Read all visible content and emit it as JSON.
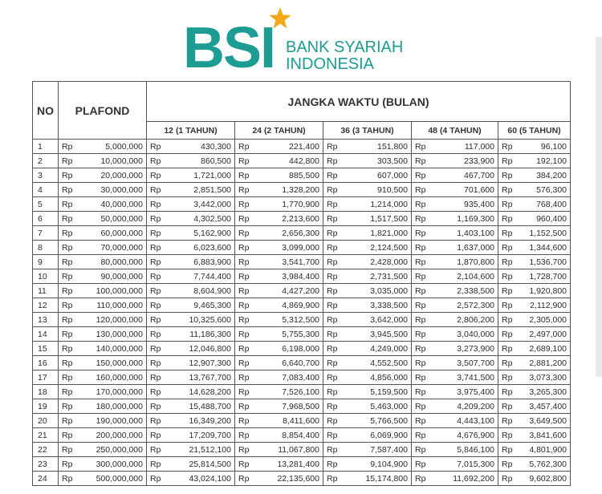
{
  "logo": {
    "mark": "BSI",
    "name_line1": "BANK SYARIAH",
    "name_line2": "INDONESIA"
  },
  "table": {
    "headers": {
      "no": "NO",
      "plafond": "PLAFOND",
      "term_group": "JANGKA WAKTU (BULAN)",
      "terms": [
        "12 (1 TAHUN)",
        "24 (2 TAHUN)",
        "36 (3 TAHUN)",
        "48 (4 TAHUN)",
        "60 (5 TAHUN)"
      ]
    },
    "currency": "Rp",
    "rows": [
      [
        "1",
        "5,000,000",
        "430,300",
        "221,400",
        "151,800",
        "117,000",
        "96,100"
      ],
      [
        "2",
        "10,000,000",
        "860,500",
        "442,800",
        "303,500",
        "233,900",
        "192,100"
      ],
      [
        "3",
        "20,000,000",
        "1,721,000",
        "885,500",
        "607,000",
        "467,700",
        "384,200"
      ],
      [
        "4",
        "30,000,000",
        "2,851,500",
        "1,328,200",
        "910,500",
        "701,600",
        "576,300"
      ],
      [
        "5",
        "40,000,000",
        "3,442,000",
        "1,770,900",
        "1,214,000",
        "935,400",
        "768,400"
      ],
      [
        "6",
        "50,000,000",
        "4,302,500",
        "2,213,600",
        "1,517,500",
        "1,169,300",
        "960,400"
      ],
      [
        "7",
        "60,000,000",
        "5,162,900",
        "2,656,300",
        "1,821,000",
        "1,403,100",
        "1,152,500"
      ],
      [
        "8",
        "70,000,000",
        "6,023,600",
        "3,099,000",
        "2,124,500",
        "1,637,000",
        "1,344,600"
      ],
      [
        "9",
        "80,000,000",
        "6,883,900",
        "3,541,700",
        "2,428,000",
        "1,870,800",
        "1,536,700"
      ],
      [
        "10",
        "90,000,000",
        "7,744,400",
        "3,984,400",
        "2,731,500",
        "2,104,600",
        "1,728,700"
      ],
      [
        "11",
        "100,000,000",
        "8,604,900",
        "4,427,200",
        "3,035,000",
        "2,338,500",
        "1,920,800"
      ],
      [
        "12",
        "110,000,000",
        "9,465,300",
        "4,869,900",
        "3,338,500",
        "2,572,300",
        "2,112,900"
      ],
      [
        "13",
        "120,000,000",
        "10,325,600",
        "5,312,500",
        "3,642,000",
        "2,806,200",
        "2,305,000"
      ],
      [
        "14",
        "130,000,000",
        "11,186,300",
        "5,755,300",
        "3,945,500",
        "3,040,000",
        "2,497,000"
      ],
      [
        "15",
        "140,000,000",
        "12,046,800",
        "6,198,000",
        "4,249,000",
        "3,273,900",
        "2,689,100"
      ],
      [
        "16",
        "150,000,000",
        "12,907,300",
        "6,640,700",
        "4,552,500",
        "3,507,700",
        "2,881,200"
      ],
      [
        "17",
        "160,000,000",
        "13,767,700",
        "7,083,400",
        "4,856,000",
        "3,741,500",
        "3,073,300"
      ],
      [
        "18",
        "170,000,000",
        "14,628,200",
        "7,526,100",
        "5,159,500",
        "3,975,400",
        "3,265,300"
      ],
      [
        "19",
        "180,000,000",
        "15,488,700",
        "7,968,500",
        "5,463,000",
        "4,209,200",
        "3,457,400"
      ],
      [
        "20",
        "190,000,000",
        "16,349,200",
        "8,411,600",
        "5,766,500",
        "4,443,100",
        "3,649,500"
      ],
      [
        "21",
        "200,000,000",
        "17,209,700",
        "8,854,400",
        "6,069,900",
        "4,676,900",
        "3,841,600"
      ],
      [
        "22",
        "250,000,000",
        "21,512,100",
        "11,067,800",
        "7,587,400",
        "5,846,100",
        "4,801,900"
      ],
      [
        "23",
        "300,000,000",
        "25,814,500",
        "13,281,400",
        "9,104,900",
        "7,015,300",
        "5,762,300"
      ],
      [
        "24",
        "500,000,000",
        "43,024,100",
        "22,135,600",
        "15,174,800",
        "11,692,200",
        "9,602,800"
      ]
    ]
  }
}
